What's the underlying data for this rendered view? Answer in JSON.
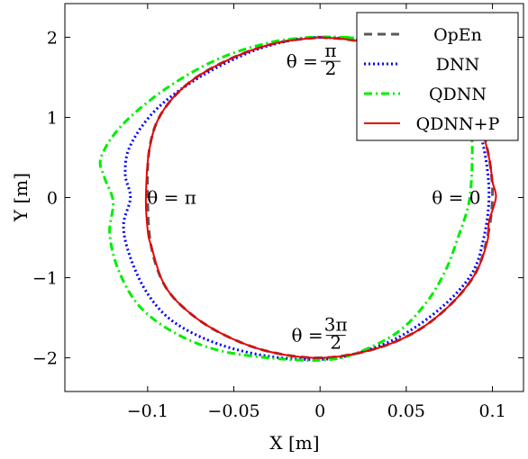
{
  "chart_data": {
    "type": "line",
    "xlabel": "X [m]",
    "ylabel": "Y [m]",
    "xlim": [
      -0.148,
      0.118
    ],
    "ylim": [
      -2.42,
      2.42
    ],
    "xticks": [
      -0.1,
      -0.05,
      0,
      0.05,
      0.1
    ],
    "xtick_labels": [
      "−0.1",
      "−0.05",
      "0",
      "0.05",
      "0.1"
    ],
    "yticks": [
      -2,
      -1,
      0,
      1,
      2
    ],
    "ytick_labels": [
      "−2",
      "−1",
      "0",
      "1",
      "2"
    ],
    "grid": false,
    "legend": "top-right",
    "annotations": [
      {
        "text": "θ = π/2",
        "x": 0.003,
        "y": 1.7
      },
      {
        "text": "θ = π",
        "x": -0.086,
        "y": 0
      },
      {
        "text": "θ = 0",
        "x": 0.079,
        "y": 0
      },
      {
        "text": "θ = 3π/2",
        "x": 0.006,
        "y": -1.72
      }
    ],
    "series": [
      {
        "name": "OpEn",
        "color": "#595959",
        "style": "dashed",
        "points": [
          [
            0,
            2
          ],
          [
            0.02,
            1.96
          ],
          [
            0.045,
            1.83
          ],
          [
            0.065,
            1.6
          ],
          [
            0.08,
            1.3
          ],
          [
            0.092,
            0.95
          ],
          [
            0.098,
            0.5
          ],
          [
            0.1,
            0
          ],
          [
            0.097,
            -0.5
          ],
          [
            0.09,
            -0.95
          ],
          [
            0.075,
            -1.35
          ],
          [
            0.055,
            -1.68
          ],
          [
            0.03,
            -1.9
          ],
          [
            0,
            -2
          ],
          [
            -0.03,
            -1.92
          ],
          [
            -0.055,
            -1.72
          ],
          [
            -0.075,
            -1.45
          ],
          [
            -0.09,
            -1.1
          ],
          [
            -0.098,
            -0.6
          ],
          [
            -0.1,
            0
          ],
          [
            -0.099,
            0.6
          ],
          [
            -0.092,
            1.05
          ],
          [
            -0.075,
            1.45
          ],
          [
            -0.05,
            1.75
          ],
          [
            -0.025,
            1.93
          ],
          [
            0,
            2
          ]
        ]
      },
      {
        "name": "DNN",
        "color": "#0000ff",
        "style": "dotted",
        "points": [
          [
            0,
            2
          ],
          [
            0.02,
            1.97
          ],
          [
            0.045,
            1.85
          ],
          [
            0.065,
            1.65
          ],
          [
            0.08,
            1.35
          ],
          [
            0.09,
            1
          ],
          [
            0.096,
            0.5
          ],
          [
            0.098,
            0
          ],
          [
            0.095,
            -0.5
          ],
          [
            0.088,
            -0.95
          ],
          [
            0.07,
            -1.38
          ],
          [
            0.045,
            -1.75
          ],
          [
            0.02,
            -1.95
          ],
          [
            0,
            -2.02
          ],
          [
            -0.03,
            -1.98
          ],
          [
            -0.06,
            -1.82
          ],
          [
            -0.085,
            -1.55
          ],
          [
            -0.1,
            -1.2
          ],
          [
            -0.11,
            -0.75
          ],
          [
            -0.114,
            -0.35
          ],
          [
            -0.11,
            0
          ],
          [
            -0.113,
            0.3
          ],
          [
            -0.11,
            0.65
          ],
          [
            -0.095,
            1.1
          ],
          [
            -0.07,
            1.5
          ],
          [
            -0.04,
            1.82
          ],
          [
            -0.015,
            1.97
          ],
          [
            0,
            2
          ]
        ]
      },
      {
        "name": "QDNN",
        "color": "#00ee00",
        "style": "dashdot",
        "points": [
          [
            0.015,
            2
          ],
          [
            0.04,
            1.93
          ],
          [
            0.06,
            1.76
          ],
          [
            0.075,
            1.5
          ],
          [
            0.085,
            1.15
          ],
          [
            0.088,
            0.75
          ],
          [
            0.088,
            0.3
          ],
          [
            0.086,
            -0.1
          ],
          [
            0.08,
            -0.5
          ],
          [
            0.073,
            -0.9
          ],
          [
            0.062,
            -1.3
          ],
          [
            0.045,
            -1.68
          ],
          [
            0.02,
            -1.95
          ],
          [
            0,
            -2.03
          ],
          [
            -0.03,
            -2
          ],
          [
            -0.06,
            -1.9
          ],
          [
            -0.085,
            -1.68
          ],
          [
            -0.105,
            -1.35
          ],
          [
            -0.117,
            -0.9
          ],
          [
            -0.122,
            -0.45
          ],
          [
            -0.12,
            -0.05
          ],
          [
            -0.125,
            0.25
          ],
          [
            -0.127,
            0.5
          ],
          [
            -0.115,
            0.9
          ],
          [
            -0.09,
            1.35
          ],
          [
            -0.06,
            1.72
          ],
          [
            -0.03,
            1.93
          ],
          [
            -0.005,
            2
          ],
          [
            0.015,
            2
          ]
        ]
      },
      {
        "name": "QDNN+P",
        "color": "#ee0000",
        "style": "solid",
        "points": [
          [
            0,
            2
          ],
          [
            0.02,
            1.96
          ],
          [
            0.045,
            1.83
          ],
          [
            0.065,
            1.6
          ],
          [
            0.08,
            1.3
          ],
          [
            0.092,
            0.95
          ],
          [
            0.098,
            0.5
          ],
          [
            0.1,
            0.2
          ],
          [
            0.102,
            0
          ],
          [
            0.098,
            -0.3
          ],
          [
            0.097,
            -0.55
          ],
          [
            0.09,
            -0.95
          ],
          [
            0.075,
            -1.35
          ],
          [
            0.055,
            -1.68
          ],
          [
            0.03,
            -1.9
          ],
          [
            0,
            -2
          ],
          [
            -0.03,
            -1.92
          ],
          [
            -0.055,
            -1.72
          ],
          [
            -0.075,
            -1.45
          ],
          [
            -0.09,
            -1.1
          ],
          [
            -0.098,
            -0.6
          ],
          [
            -0.1,
            -0.4
          ],
          [
            -0.101,
            0
          ],
          [
            -0.099,
            0.6
          ],
          [
            -0.092,
            1.05
          ],
          [
            -0.075,
            1.45
          ],
          [
            -0.05,
            1.75
          ],
          [
            -0.025,
            1.93
          ],
          [
            0,
            2
          ]
        ]
      }
    ]
  }
}
